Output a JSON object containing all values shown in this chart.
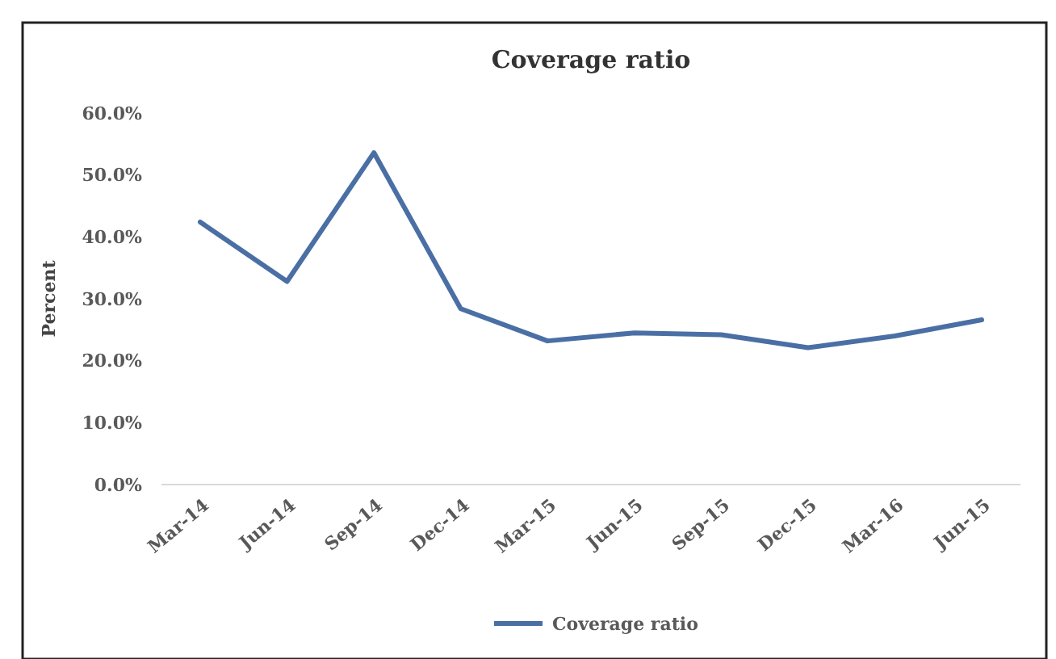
{
  "chart_data": {
    "type": "line",
    "title": "Coverage ratio",
    "ylabel": "Percent",
    "categories": [
      "Mar-14",
      "Jun-14",
      "Sep-14",
      "Dec-14",
      "Mar-15",
      "Jun-15",
      "Sep-15",
      "Dec-15",
      "Mar-16",
      "Jun-15"
    ],
    "series": [
      {
        "name": "Coverage ratio",
        "color": "#4a6fa5",
        "values": [
          42.4,
          32.8,
          53.6,
          28.4,
          23.2,
          24.5,
          24.2,
          22.1,
          24.0,
          26.6
        ]
      }
    ],
    "ylim": [
      0,
      60
    ],
    "yticks": [
      {
        "value": 0,
        "label": "0.0%"
      },
      {
        "value": 10,
        "label": "10.0%"
      },
      {
        "value": 20,
        "label": "20.0%"
      },
      {
        "value": 30,
        "label": "30.0%"
      },
      {
        "value": 40,
        "label": "40.0%"
      },
      {
        "value": 50,
        "label": "50.0%"
      },
      {
        "value": 60,
        "label": "60.0%"
      }
    ],
    "grid": false,
    "legend": "bottom",
    "marker": "none",
    "line_style": "solid"
  }
}
